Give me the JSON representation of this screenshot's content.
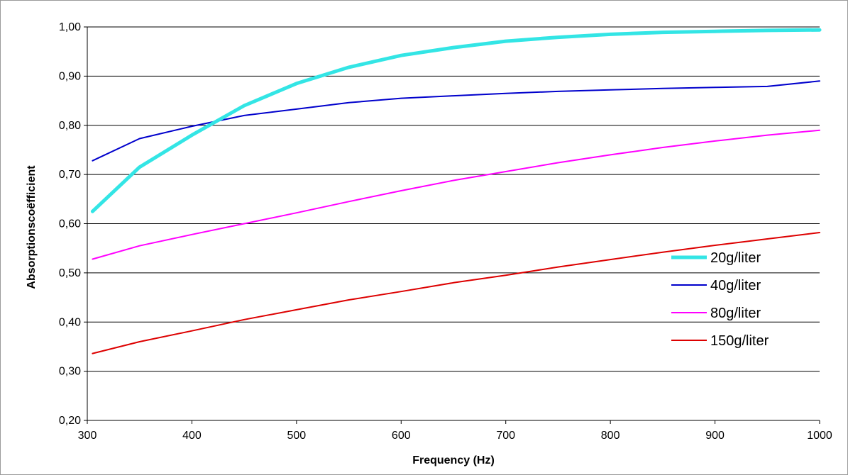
{
  "chart_data": {
    "type": "line",
    "title": "",
    "xlabel": "Frequency (Hz)",
    "ylabel": "Absorptionscoëfficient",
    "xlim": [
      300,
      1000
    ],
    "ylim": [
      0.2,
      1.0
    ],
    "xticks": [
      300,
      400,
      500,
      600,
      700,
      800,
      900,
      1000
    ],
    "xtick_labels": [
      "300",
      "400",
      "500",
      "600",
      "700",
      "800",
      "900",
      "1000"
    ],
    "yticks": [
      0.2,
      0.3,
      0.4,
      0.5,
      0.6,
      0.7,
      0.8,
      0.9,
      1.0
    ],
    "ytick_labels": [
      "0,20",
      "0,30",
      "0,40",
      "0,50",
      "0,60",
      "0,70",
      "0,80",
      "0,90",
      "1,00"
    ],
    "grid": "horizontal",
    "legend_position": "right",
    "x": [
      305,
      350,
      400,
      450,
      500,
      550,
      600,
      650,
      700,
      750,
      800,
      850,
      900,
      950,
      1000
    ],
    "series": [
      {
        "name": "20g/liter",
        "color": "#33e5e5",
        "values": [
          0.625,
          0.715,
          0.78,
          0.84,
          0.885,
          0.918,
          0.942,
          0.958,
          0.971,
          0.979,
          0.985,
          0.989,
          0.991,
          0.993,
          0.994
        ]
      },
      {
        "name": "40g/liter",
        "color": "#0000cc",
        "values": [
          0.728,
          0.773,
          0.798,
          0.82,
          0.833,
          0.846,
          0.855,
          0.86,
          0.865,
          0.869,
          0.872,
          0.875,
          0.877,
          0.879,
          0.89
        ]
      },
      {
        "name": "80g/liter",
        "color": "#ff00ff",
        "values": [
          0.528,
          0.555,
          0.578,
          0.6,
          0.622,
          0.645,
          0.667,
          0.688,
          0.706,
          0.724,
          0.74,
          0.755,
          0.768,
          0.78,
          0.79
        ]
      },
      {
        "name": "150g/liter",
        "color": "#dd0000",
        "values": [
          0.336,
          0.36,
          0.382,
          0.405,
          0.425,
          0.445,
          0.462,
          0.48,
          0.495,
          0.512,
          0.527,
          0.542,
          0.556,
          0.569,
          0.582
        ]
      }
    ]
  }
}
